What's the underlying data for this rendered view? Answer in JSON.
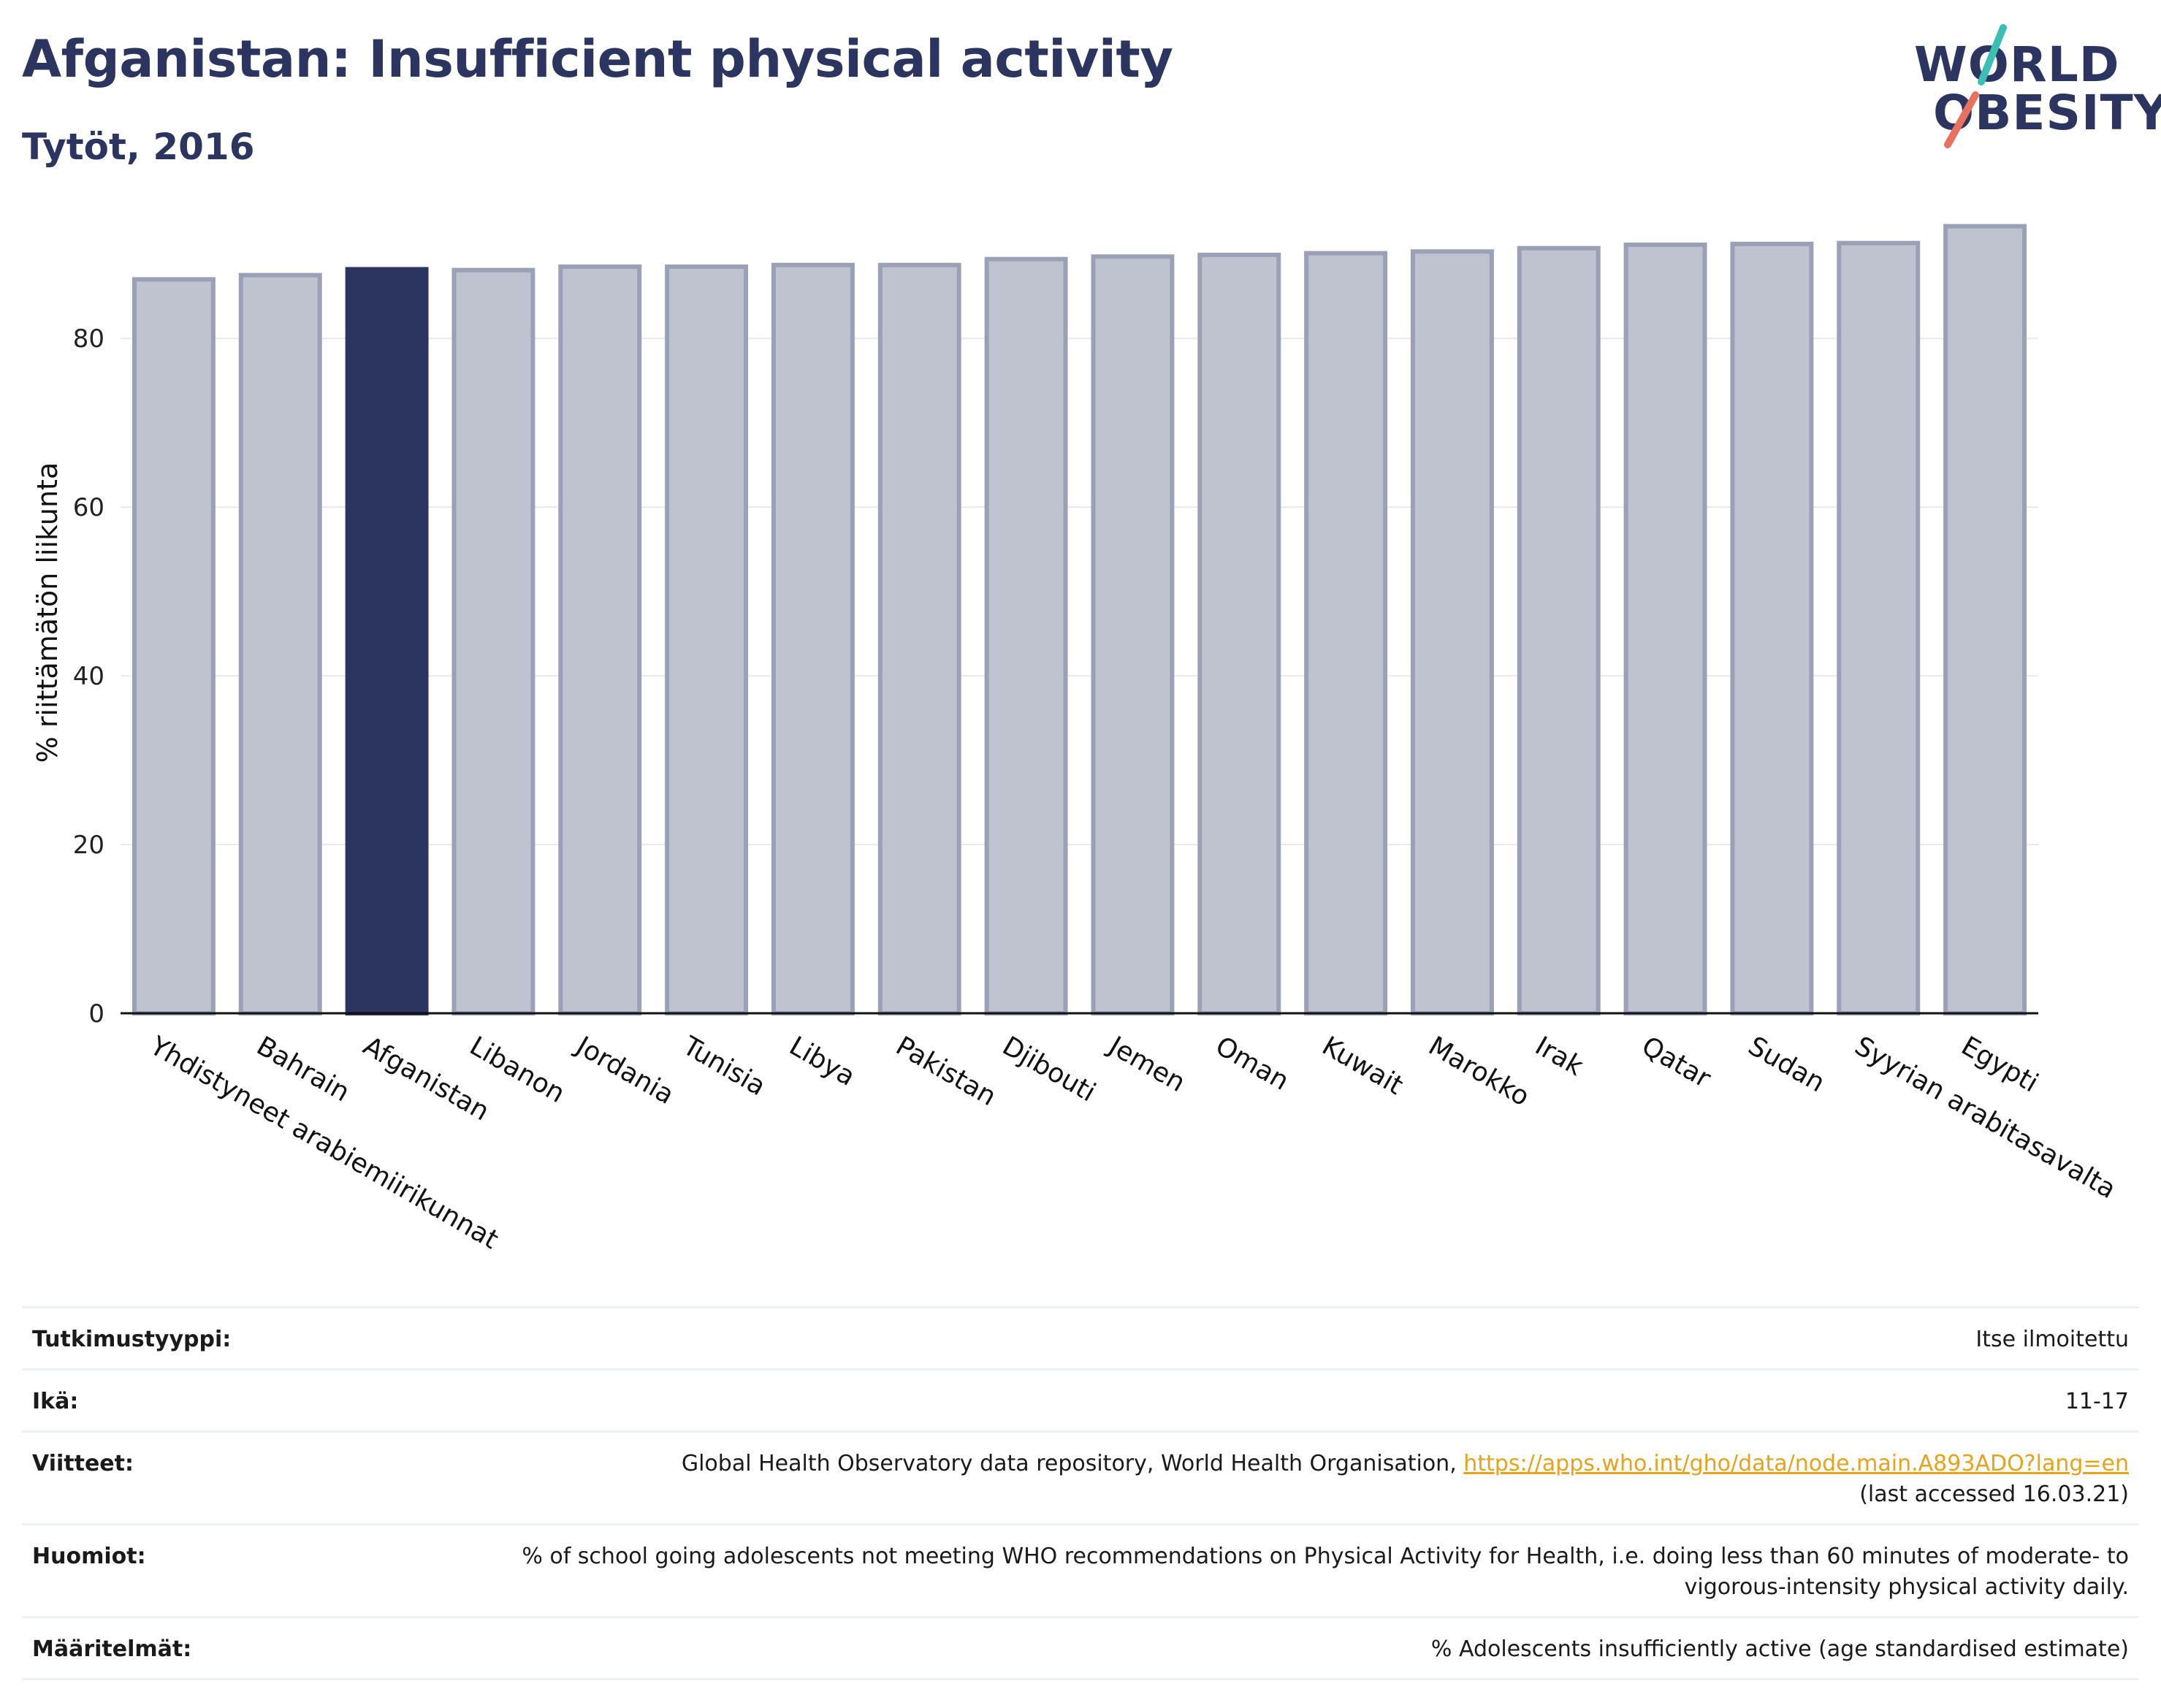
{
  "header": {
    "title": "Afganistan: Insufficient physical activity",
    "subtitle": "Tytöt, 2016"
  },
  "logo": {
    "line1": "WORLD",
    "line2": "OBESITY",
    "text_color": "#2b3560",
    "slash_colors": [
      "#3bbfb5",
      "#e8715f"
    ]
  },
  "chart_data": {
    "type": "bar",
    "ylabel": "% riittämätön liikunta",
    "ylim": [
      0,
      95
    ],
    "yticks": [
      0,
      20,
      40,
      60,
      80
    ],
    "grid": true,
    "highlight_category": "Afganistan",
    "colors": {
      "bar": "#bfc2cf",
      "bar_edge": "#9aa0b6",
      "highlight": "#2b3560",
      "grid": "#e8e8ee"
    },
    "categories": [
      "Yhdistyneet arabiemiirikunnat",
      "Bahrain",
      "Afganistan",
      "Libanon",
      "Jordania",
      "Tunisia",
      "Libya",
      "Pakistan",
      "Djibouti",
      "Jemen",
      "Oman",
      "Kuwait",
      "Marokko",
      "Irak",
      "Qatar",
      "Sudan",
      "Syyrian arabitasavalta",
      "Egypti"
    ],
    "values": [
      87.0,
      87.5,
      88.2,
      88.1,
      88.5,
      88.5,
      88.7,
      88.7,
      89.4,
      89.7,
      89.9,
      90.1,
      90.3,
      90.7,
      91.1,
      91.2,
      91.3,
      93.3
    ]
  },
  "info": [
    {
      "key": "Tutkimustyyppi:",
      "value": "Itse ilmoitettu"
    },
    {
      "key": "Ikä:",
      "value": "11-17"
    },
    {
      "key": "Viitteet:",
      "value": "Global Health Observatory data repository, World Health Organisation, ",
      "link": "https://apps.who.int/gho/data/node.main.A893ADO?lang=en",
      "value_after": "(last accessed 16.03.21)"
    },
    {
      "key": "Huomiot:",
      "value": "% of school going adolescents not meeting WHO recommendations on Physical Activity for Health, i.e. doing less than 60 minutes of moderate- to vigorous-intensity physical activity daily."
    },
    {
      "key": "Määritelmät:",
      "value": "% Adolescents insufficiently active (age standardised estimate)"
    }
  ]
}
